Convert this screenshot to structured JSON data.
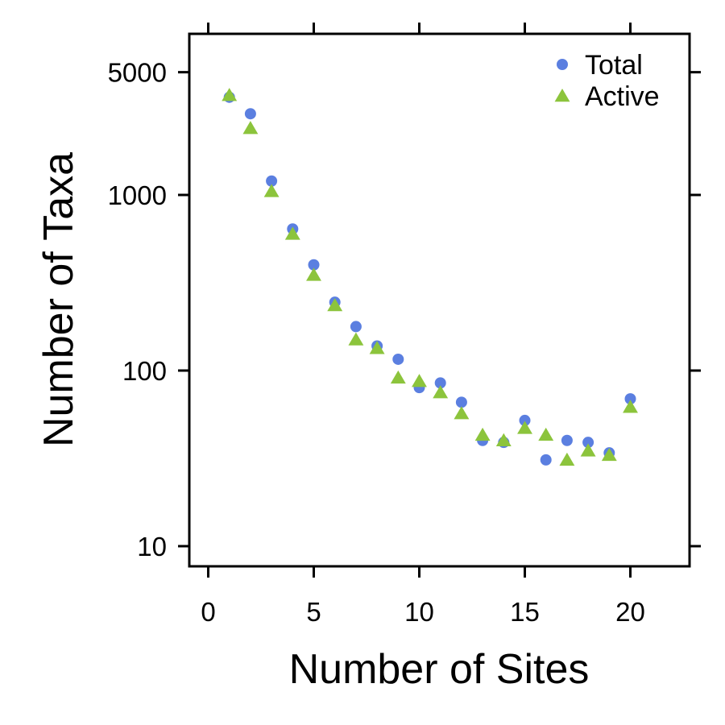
{
  "chart_data": {
    "type": "scatter",
    "xlabel": "Number of Sites",
    "ylabel": "Number of Taxa",
    "x_scale": "linear",
    "y_scale": "log",
    "xlim": [
      -0.9,
      22.9
    ],
    "ylim": [
      8,
      8000
    ],
    "x_ticks": [
      0,
      5,
      10,
      15,
      20
    ],
    "x_tick_labels": [
      "0",
      "5",
      "10",
      "15",
      "20"
    ],
    "y_ticks": [
      10,
      100,
      1000,
      5000
    ],
    "y_tick_labels": [
      "10",
      "100",
      "1000",
      "5000"
    ],
    "grid": false,
    "legend_position": "top-right",
    "series": [
      {
        "name": "Total",
        "marker": "circle",
        "color": "#5b7fe0",
        "x": [
          1,
          2,
          3,
          4,
          5,
          6,
          7,
          8,
          9,
          10,
          11,
          12,
          13,
          14,
          15,
          16,
          17,
          18,
          19,
          20
        ],
        "y": [
          3600,
          2900,
          1200,
          640,
          400,
          245,
          178,
          138,
          116,
          80,
          85,
          66,
          40,
          39,
          52,
          31,
          40,
          39,
          34,
          69
        ]
      },
      {
        "name": "Active",
        "marker": "triangle",
        "color": "#8cc43c",
        "x": [
          1,
          2,
          3,
          4,
          5,
          6,
          7,
          8,
          9,
          10,
          11,
          12,
          13,
          14,
          15,
          16,
          17,
          18,
          19,
          20
        ],
        "y": [
          3700,
          2400,
          1050,
          600,
          350,
          235,
          150,
          134,
          91,
          87,
          75,
          57,
          43,
          40,
          47,
          43,
          31,
          35,
          33,
          62
        ]
      }
    ]
  }
}
